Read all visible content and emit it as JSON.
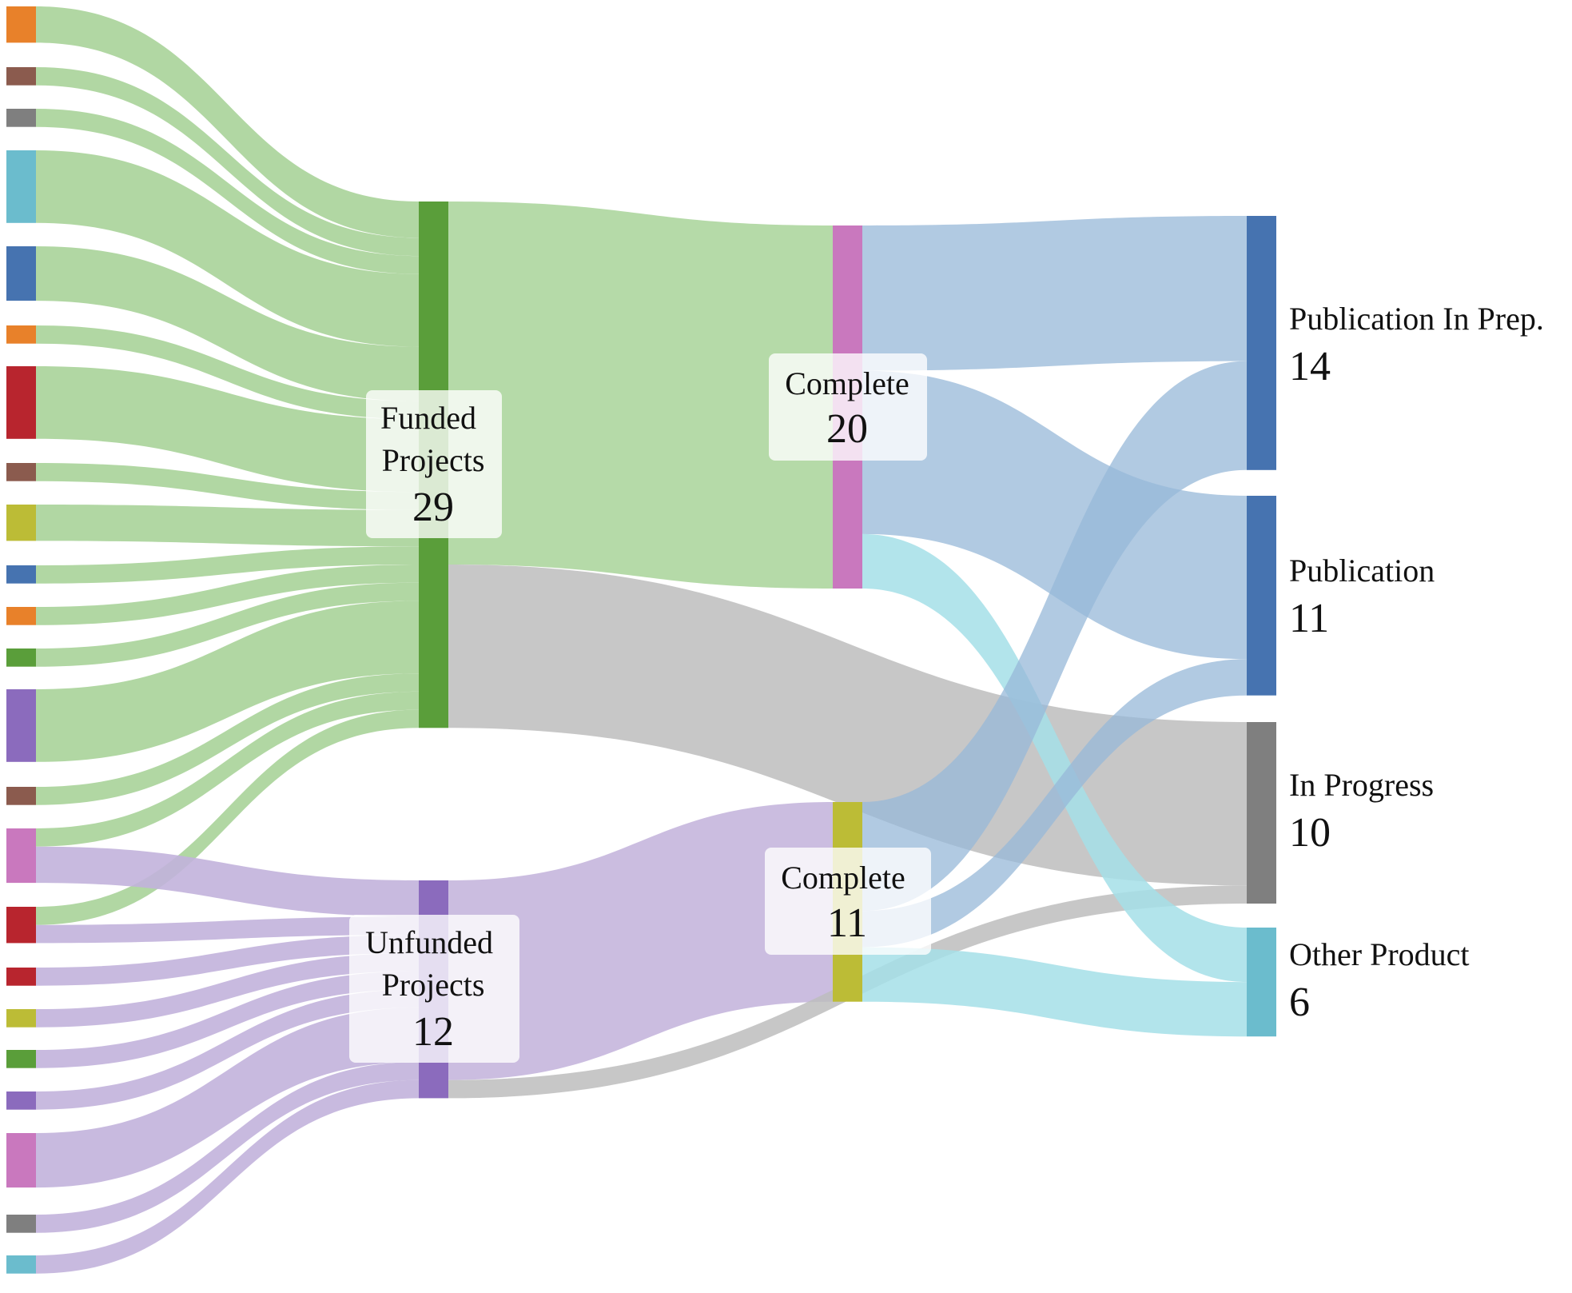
{
  "colors": {
    "funded_link": "#a8d399",
    "unfunded_link": "#c2b2db",
    "complete_funded_link": "#e2b6dc",
    "in_progress_link": "#bdbdbd",
    "complete_unfunded_link": "#dcdc96",
    "publication_link": "#97b8d8",
    "other_link": "#a4dfe7",
    "funded_node": "#5a9e3a",
    "unfunded_node": "#8b6bbd",
    "complete_funded_node": "#c978be",
    "complete_unfunded_node": "#bcbc36",
    "publication_node": "#4673b0",
    "in_progress_node": "#7f7f7f",
    "other_node": "#6bbccd"
  },
  "chart_data": {
    "type": "sankey",
    "source_nodes": [
      {
        "color": "#e8812a",
        "value": 2
      },
      {
        "color": "#8b5b4e",
        "value": 1
      },
      {
        "color": "#7f7f7f",
        "value": 1
      },
      {
        "color": "#6bbccd",
        "value": 4
      },
      {
        "color": "#4673b0",
        "value": 3
      },
      {
        "color": "#e8812a",
        "value": 1
      },
      {
        "color": "#b8252e",
        "value": 4
      },
      {
        "color": "#8b5b4e",
        "value": 1
      },
      {
        "color": "#bcbc36",
        "value": 2
      },
      {
        "color": "#4673b0",
        "value": 1
      },
      {
        "color": "#e8812a",
        "value": 1
      },
      {
        "color": "#5a9e3a",
        "value": 1
      },
      {
        "color": "#8b6bbd",
        "value": 4
      },
      {
        "color": "#8b5b4e",
        "value": 1
      },
      {
        "color": "#c978be",
        "value": 3
      },
      {
        "color": "#b8252e",
        "value": 2
      },
      {
        "color": "#b8252e",
        "value": 1
      },
      {
        "color": "#bcbc36",
        "value": 1
      },
      {
        "color": "#5a9e3a",
        "value": 1
      },
      {
        "color": "#8b6bbd",
        "value": 1
      },
      {
        "color": "#c978be",
        "value": 3
      },
      {
        "color": "#7f7f7f",
        "value": 1
      },
      {
        "color": "#6bbccd",
        "value": 1
      }
    ],
    "funding_nodes": [
      {
        "id": "funded",
        "name_lines": [
          "Funded",
          "Projects"
        ],
        "value": "29"
      },
      {
        "id": "unfunded",
        "name_lines": [
          "Unfunded",
          "Projects"
        ],
        "value": "12"
      }
    ],
    "status_nodes": [
      {
        "id": "complete_funded",
        "name": "Complete",
        "value": "20"
      },
      {
        "id": "complete_unfunded",
        "name": "Complete",
        "value": "11"
      }
    ],
    "outcome_nodes": [
      {
        "id": "pub_prep",
        "name": "Publication In Prep.",
        "value": "14"
      },
      {
        "id": "publication",
        "name": "Publication",
        "value": "11"
      },
      {
        "id": "in_progress",
        "name": "In Progress",
        "value": "10"
      },
      {
        "id": "other",
        "name": "Other Product",
        "value": "6"
      }
    ],
    "source_links": [
      {
        "source": 0,
        "target": "funded",
        "value": 2
      },
      {
        "source": 1,
        "target": "funded",
        "value": 1
      },
      {
        "source": 2,
        "target": "funded",
        "value": 1
      },
      {
        "source": 3,
        "target": "funded",
        "value": 4
      },
      {
        "source": 4,
        "target": "funded",
        "value": 3
      },
      {
        "source": 5,
        "target": "funded",
        "value": 1
      },
      {
        "source": 6,
        "target": "funded",
        "value": 4
      },
      {
        "source": 7,
        "target": "funded",
        "value": 1
      },
      {
        "source": 8,
        "target": "funded",
        "value": 2
      },
      {
        "source": 9,
        "target": "funded",
        "value": 1
      },
      {
        "source": 10,
        "target": "funded",
        "value": 1
      },
      {
        "source": 11,
        "target": "funded",
        "value": 1
      },
      {
        "source": 12,
        "target": "funded",
        "value": 4
      },
      {
        "source": 13,
        "target": "funded",
        "value": 1
      },
      {
        "source": 14,
        "target": "funded",
        "value": 1
      },
      {
        "source": 15,
        "target": "funded",
        "value": 1
      },
      {
        "source": 14,
        "target": "unfunded",
        "value": 2
      },
      {
        "source": 15,
        "target": "unfunded",
        "value": 1
      },
      {
        "source": 16,
        "target": "unfunded",
        "value": 1
      },
      {
        "source": 17,
        "target": "unfunded",
        "value": 1
      },
      {
        "source": 18,
        "target": "unfunded",
        "value": 1
      },
      {
        "source": 19,
        "target": "unfunded",
        "value": 1
      },
      {
        "source": 20,
        "target": "unfunded",
        "value": 3
      },
      {
        "source": 21,
        "target": "unfunded",
        "value": 1
      },
      {
        "source": 22,
        "target": "unfunded",
        "value": 1
      }
    ],
    "flow_links": [
      {
        "source": "funded",
        "target": "complete_funded",
        "value": 20
      },
      {
        "source": "funded",
        "target": "in_progress",
        "value": 9
      },
      {
        "source": "unfunded",
        "target": "complete_unfunded",
        "value": 11
      },
      {
        "source": "unfunded",
        "target": "in_progress",
        "value": 1
      },
      {
        "source": "complete_funded",
        "target": "pub_prep",
        "value": 8
      },
      {
        "source": "complete_funded",
        "target": "publication",
        "value": 9
      },
      {
        "source": "complete_funded",
        "target": "other",
        "value": 3
      },
      {
        "source": "complete_unfunded",
        "target": "pub_prep",
        "value": 6
      },
      {
        "source": "complete_unfunded",
        "target": "publication",
        "value": 2
      },
      {
        "source": "complete_unfunded",
        "target": "other",
        "value": 3
      }
    ]
  }
}
